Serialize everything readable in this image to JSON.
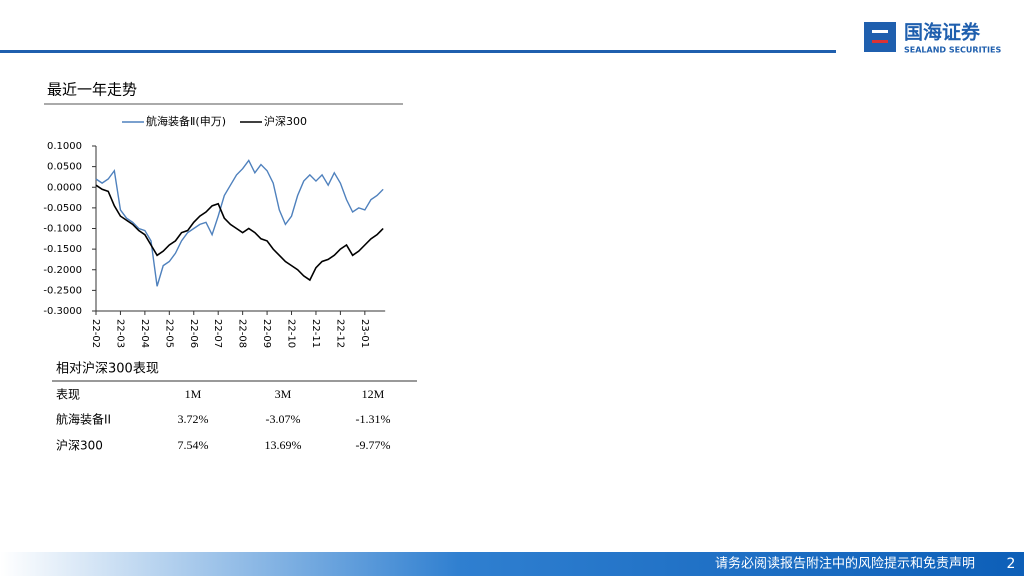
{
  "header": {
    "logo": "国海证券",
    "logo_sub": "SEALAND SECURITIES",
    "section_title": "最近一年走势"
  },
  "chart_data": {
    "type": "line",
    "categories": [
      "22-02",
      null,
      null,
      null,
      "22-03",
      null,
      null,
      null,
      "22-04",
      null,
      null,
      null,
      "22-05",
      null,
      null,
      null,
      "22-06",
      null,
      null,
      null,
      "22-07",
      null,
      null,
      null,
      "22-08",
      null,
      null,
      null,
      "22-09",
      null,
      null,
      null,
      "22-10",
      null,
      null,
      null,
      "22-11",
      null,
      null,
      null,
      "22-12",
      null,
      null,
      null,
      "23-01",
      null,
      null,
      null
    ],
    "series": [
      {
        "name": "航海装备Ⅱ(申万)",
        "color": "#4f81bd",
        "values": [
          0.02,
          0.01,
          0.02,
          0.04,
          -0.055,
          -0.075,
          -0.085,
          -0.1,
          -0.105,
          -0.13,
          -0.24,
          -0.19,
          -0.18,
          -0.16,
          -0.13,
          -0.11,
          -0.1,
          -0.09,
          -0.085,
          -0.115,
          -0.07,
          -0.02,
          0.005,
          0.03,
          0.045,
          0.065,
          0.035,
          0.055,
          0.04,
          0.01,
          -0.055,
          -0.09,
          -0.07,
          -0.02,
          0.015,
          0.03,
          0.015,
          0.03,
          0.005,
          0.035,
          0.01,
          -0.03,
          -0.06,
          -0.05,
          -0.055,
          -0.03,
          -0.02,
          -0.005
        ]
      },
      {
        "name": "沪深300",
        "color": "#000000",
        "values": [
          0.005,
          -0.005,
          -0.01,
          -0.045,
          -0.07,
          -0.08,
          -0.09,
          -0.105,
          -0.115,
          -0.14,
          -0.165,
          -0.155,
          -0.14,
          -0.13,
          -0.11,
          -0.105,
          -0.085,
          -0.07,
          -0.06,
          -0.045,
          -0.04,
          -0.075,
          -0.09,
          -0.1,
          -0.11,
          -0.1,
          -0.11,
          -0.125,
          -0.13,
          -0.15,
          -0.165,
          -0.18,
          -0.19,
          -0.2,
          -0.215,
          -0.225,
          -0.195,
          -0.18,
          -0.175,
          -0.165,
          -0.15,
          -0.14,
          -0.165,
          -0.155,
          -0.14,
          -0.125,
          -0.115,
          -0.1
        ]
      }
    ],
    "ylim": [
      -0.3,
      0.1
    ],
    "yticks": [
      {
        "value": 0.1,
        "label": "0.1000"
      },
      {
        "value": 0.05,
        "label": "0.0500"
      },
      {
        "value": 0,
        "label": "0.0000"
      },
      {
        "value": -0.05,
        "label": "-0.0500"
      },
      {
        "value": -0.1,
        "label": "-0.1000"
      },
      {
        "value": -0.15,
        "label": "-0.1500"
      },
      {
        "value": -0.2,
        "label": "-0.2000"
      },
      {
        "value": -0.25,
        "label": "-0.2500"
      },
      {
        "value": -0.3,
        "label": "-0.3000"
      }
    ],
    "legend": "top"
  },
  "table": {
    "title": "相对沪深300表现",
    "header": [
      "表现",
      "1M",
      "3M",
      "12M"
    ],
    "rows": [
      [
        "航海装备II",
        "3.72%",
        "-3.07%",
        "-1.31%"
      ],
      [
        "沪深300",
        "7.54%",
        "13.69%",
        "-9.77%"
      ]
    ]
  },
  "footer": {
    "disclaimer": "请务必阅读报告附注中的风险提示和免责声明",
    "page": "2"
  }
}
